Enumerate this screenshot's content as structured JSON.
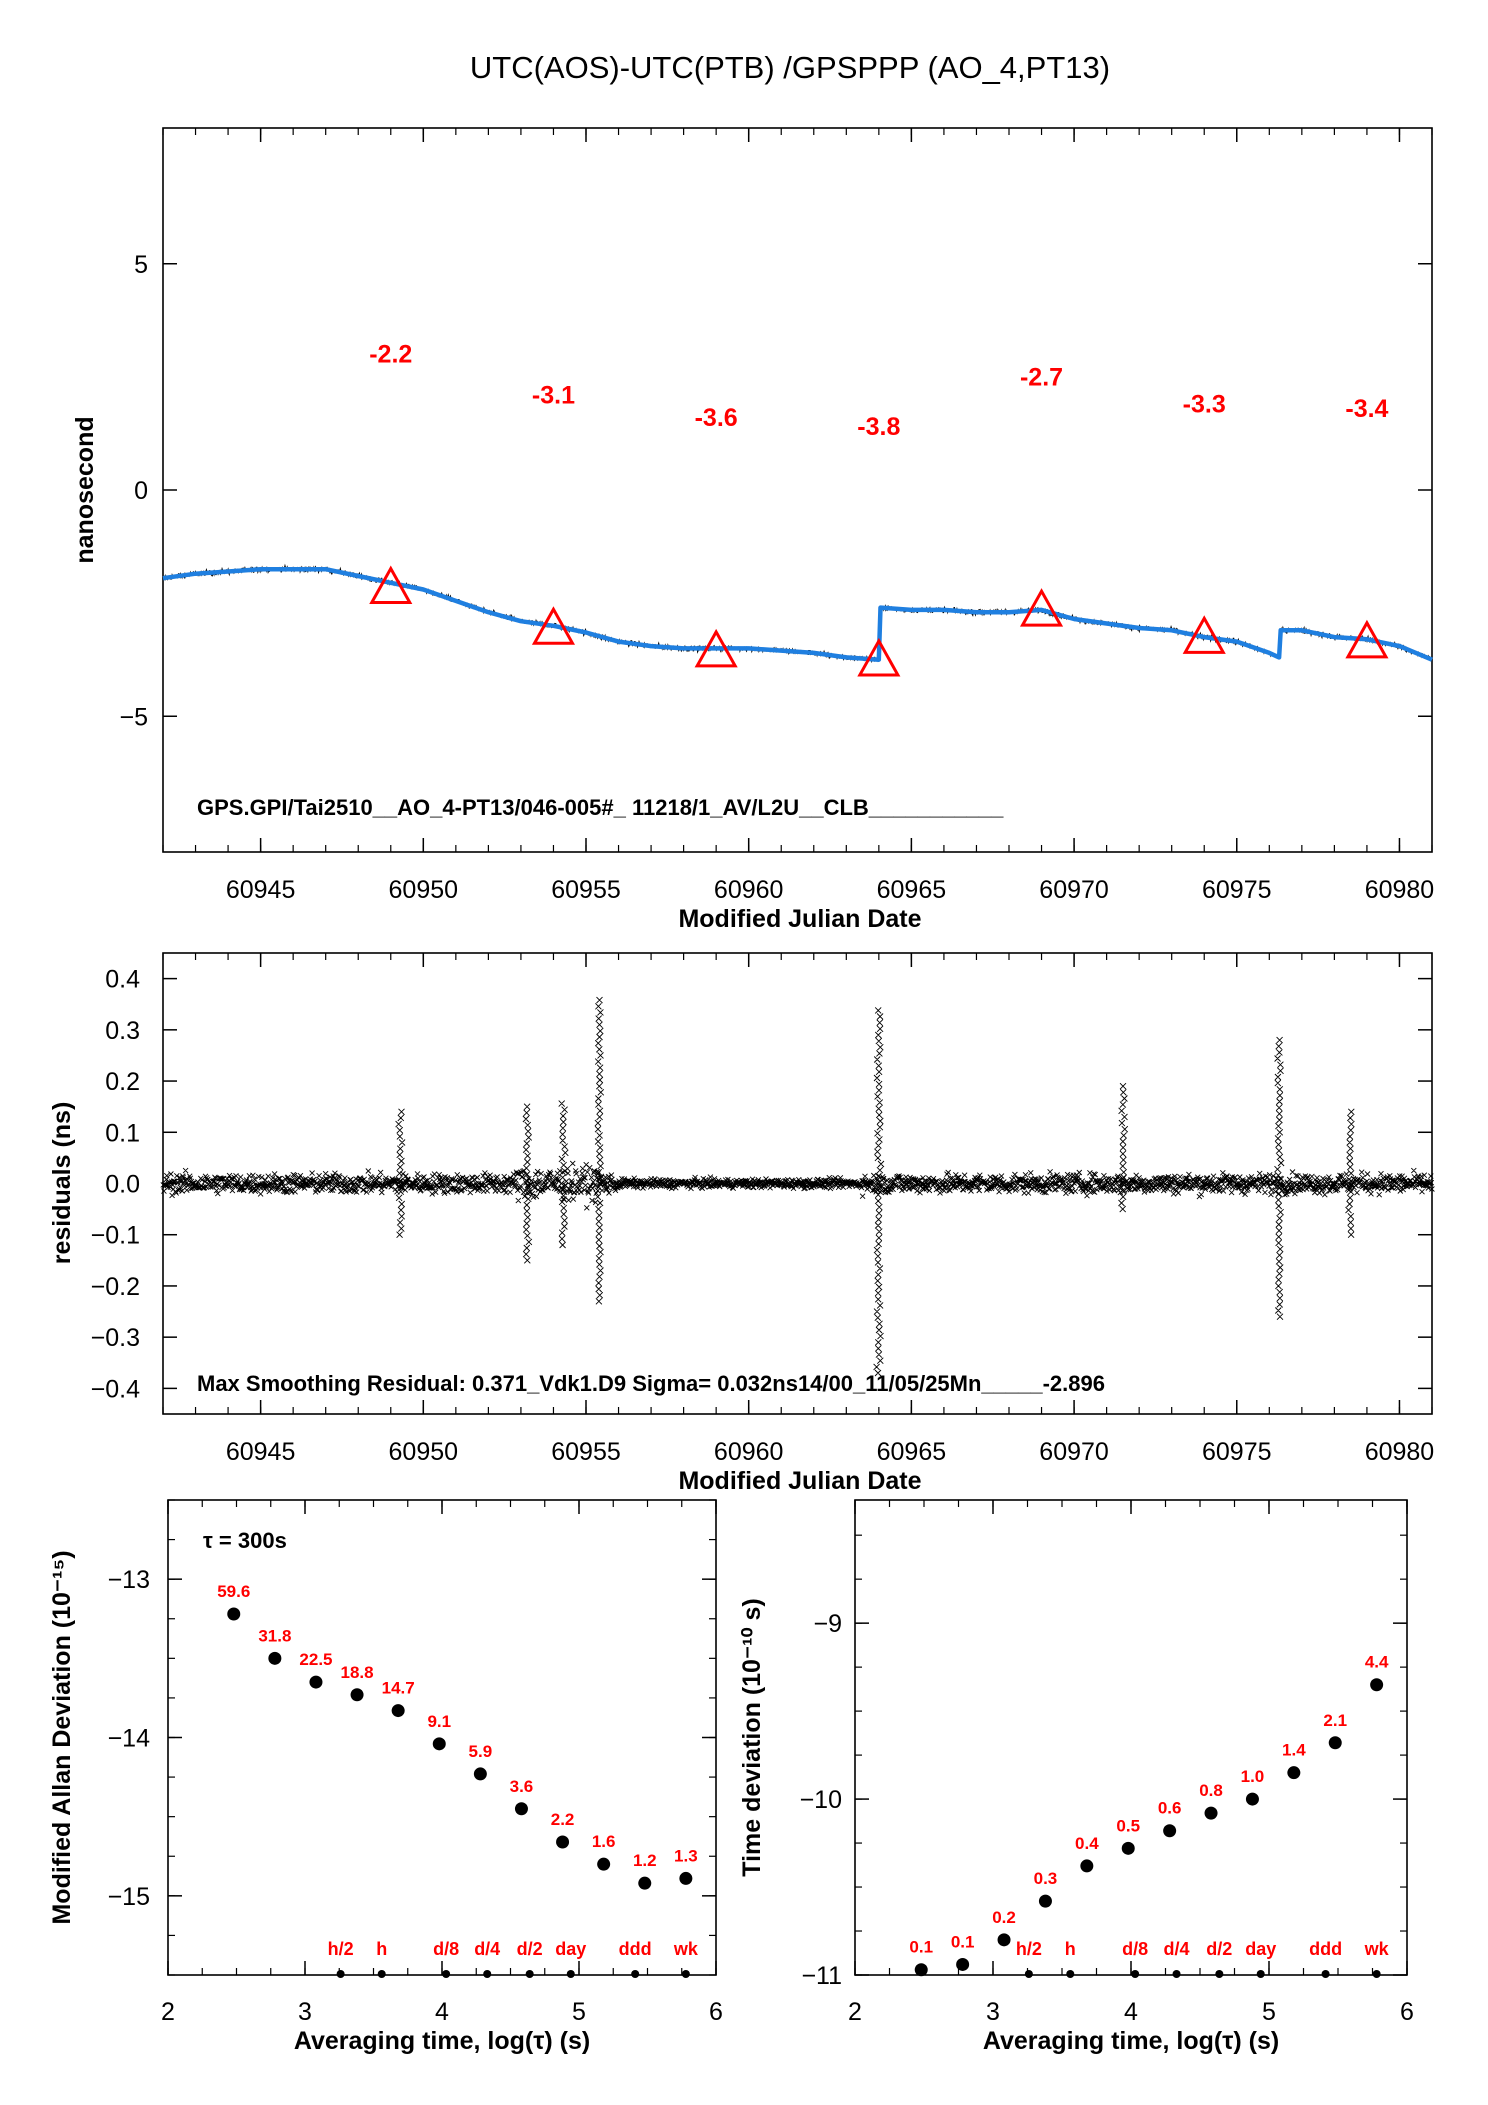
{
  "title": "UTC(AOS)-UTC(PTB)  /GPSPPP  (AO_4,PT13)",
  "colors": {
    "series": "#1f7fe0",
    "raw": "#000000",
    "marker": "#ff0000",
    "labels": "#ff0000"
  },
  "chart_data": [
    {
      "id": "time_series",
      "type": "line",
      "xlabel": "Modified Julian Date",
      "ylabel": "nanosecond",
      "xlim": [
        60942,
        60981
      ],
      "ylim": [
        -8,
        8
      ],
      "xticks": [
        "60945",
        "60950",
        "60955",
        "60960",
        "60965",
        "60970",
        "60975",
        "60980"
      ],
      "yticks": [
        "5",
        "0",
        "−5"
      ],
      "annotation": "GPS.GPI/Tai2510__AO_4-PT13/046-005#_  11218/1_AV/L2U__CLB___________",
      "series": [
        {
          "x": [
            60942,
            60943,
            60944,
            60945,
            60946,
            60947,
            60948,
            60949,
            60950,
            60951,
            60952,
            60953,
            60954,
            60955,
            60956,
            60957,
            60958,
            60959,
            60960,
            60961,
            60962,
            60963,
            60964,
            60964.05,
            60965,
            60966,
            60967,
            60968,
            60969,
            60970,
            60971,
            60972,
            60973,
            60974,
            60975,
            60976,
            60976.3,
            60976.35,
            60977,
            60978,
            60979,
            60980,
            60981
          ],
          "y": [
            -1.95,
            -1.85,
            -1.8,
            -1.75,
            -1.75,
            -1.75,
            -1.9,
            -2.05,
            -2.2,
            -2.45,
            -2.7,
            -2.9,
            -3.0,
            -3.15,
            -3.35,
            -3.45,
            -3.5,
            -3.5,
            -3.5,
            -3.55,
            -3.6,
            -3.7,
            -3.75,
            -2.6,
            -2.65,
            -2.65,
            -2.7,
            -2.7,
            -2.65,
            -2.85,
            -2.95,
            -3.05,
            -3.1,
            -3.25,
            -3.35,
            -3.6,
            -3.7,
            -3.1,
            -3.1,
            -3.25,
            -3.3,
            -3.45,
            -3.75
          ]
        }
      ],
      "markers": [
        {
          "x": 60949,
          "y": -2.2,
          "label": "-2.2"
        },
        {
          "x": 60954,
          "y": -3.1,
          "label": "-3.1"
        },
        {
          "x": 60959,
          "y": -3.6,
          "label": "-3.6"
        },
        {
          "x": 60964,
          "y": -3.8,
          "label": "-3.8"
        },
        {
          "x": 60969,
          "y": -2.7,
          "label": "-2.7"
        },
        {
          "x": 60974,
          "y": -3.3,
          "label": "-3.3"
        },
        {
          "x": 60979,
          "y": -3.4,
          "label": "-3.4"
        }
      ]
    },
    {
      "id": "residuals",
      "type": "scatter",
      "xlabel": "Modified Julian Date",
      "ylabel": "residuals (ns)",
      "xlim": [
        60942,
        60981
      ],
      "ylim": [
        -0.45,
        0.45
      ],
      "xticks": [
        "60945",
        "60950",
        "60955",
        "60960",
        "60965",
        "60970",
        "60975",
        "60980"
      ],
      "yticks": [
        "0.4",
        "0.3",
        "0.2",
        "0.1",
        "0.0",
        "−0.1",
        "−0.2",
        "−0.3",
        "−0.4"
      ],
      "annotation": "Max Smoothing Residual: 0.371_Vdk1.D9  Sigma= 0.032ns14/00_11/05/25Mn_____-2.896",
      "spikes": [
        {
          "x": 60955.4,
          "ymin": -0.23,
          "ymax": 0.37
        },
        {
          "x": 60964.0,
          "ymin": -0.37,
          "ymax": 0.35
        },
        {
          "x": 60976.3,
          "ymin": -0.26,
          "ymax": 0.29
        },
        {
          "x": 60971.5,
          "ymin": -0.05,
          "ymax": 0.2
        },
        {
          "x": 60978.5,
          "ymin": -0.1,
          "ymax": 0.14
        },
        {
          "x": 60949.3,
          "ymin": -0.1,
          "ymax": 0.15
        },
        {
          "x": 60953.2,
          "ymin": -0.15,
          "ymax": 0.16
        },
        {
          "x": 60954.3,
          "ymin": -0.12,
          "ymax": 0.16
        }
      ]
    },
    {
      "id": "mdev",
      "type": "scatter",
      "xlabel": "Averaging time, log(τ) (s)",
      "ylabel": "Modified Allan Deviation (10⁻¹⁵)",
      "xlim": [
        2,
        6
      ],
      "ylim": [
        -15.5,
        -12.5
      ],
      "xticks": [
        "2",
        "3",
        "4",
        "5",
        "6"
      ],
      "yticks": [
        "−13",
        "−14",
        "−15"
      ],
      "tau_note": "τ = 300s",
      "x": [
        2.48,
        2.78,
        3.08,
        3.38,
        3.68,
        3.98,
        4.28,
        4.58,
        4.88,
        5.18,
        5.48,
        5.78
      ],
      "y": [
        -13.22,
        -13.5,
        -13.65,
        -13.73,
        -13.83,
        -14.04,
        -14.23,
        -14.45,
        -14.66,
        -14.8,
        -14.92,
        -14.89
      ],
      "point_labels": [
        "59.6",
        "31.8",
        "22.5",
        "18.8",
        "14.7",
        "9.1",
        "5.9",
        "3.6",
        "2.2",
        "1.6",
        "1.2",
        "1.3"
      ],
      "time_markers": [
        {
          "x": 3.26,
          "label": "h/2"
        },
        {
          "x": 3.56,
          "label": "h"
        },
        {
          "x": 4.03,
          "label": "d/8"
        },
        {
          "x": 4.33,
          "label": "d/4"
        },
        {
          "x": 4.64,
          "label": "d/2"
        },
        {
          "x": 4.94,
          "label": "day"
        },
        {
          "x": 5.41,
          "label": "ddd"
        },
        {
          "x": 5.78,
          "label": "wk"
        }
      ]
    },
    {
      "id": "tdev",
      "type": "scatter",
      "xlabel": "Averaging time, log(τ) (s)",
      "ylabel": "Time deviation (10⁻¹⁰ s)",
      "xlim": [
        2,
        6
      ],
      "ylim": [
        -11,
        -8.3
      ],
      "xticks": [
        "2",
        "3",
        "4",
        "5",
        "6"
      ],
      "yticks": [
        "−9",
        "−10",
        "−11"
      ],
      "x": [
        2.48,
        2.78,
        3.08,
        3.38,
        3.68,
        3.98,
        4.28,
        4.58,
        4.88,
        5.18,
        5.48,
        5.78
      ],
      "y": [
        -10.97,
        -10.94,
        -10.8,
        -10.58,
        -10.38,
        -10.28,
        -10.18,
        -10.08,
        -10.0,
        -9.85,
        -9.68,
        -9.35
      ],
      "point_labels": [
        "0.1",
        "0.1",
        "0.2",
        "0.3",
        "0.4",
        "0.5",
        "0.6",
        "0.8",
        "1.0",
        "1.4",
        "2.1",
        "4.4"
      ],
      "time_markers": [
        {
          "x": 3.26,
          "label": "h/2"
        },
        {
          "x": 3.56,
          "label": "h"
        },
        {
          "x": 4.03,
          "label": "d/8"
        },
        {
          "x": 4.33,
          "label": "d/4"
        },
        {
          "x": 4.64,
          "label": "d/2"
        },
        {
          "x": 4.94,
          "label": "day"
        },
        {
          "x": 5.41,
          "label": "ddd"
        },
        {
          "x": 5.78,
          "label": "wk"
        }
      ]
    }
  ]
}
